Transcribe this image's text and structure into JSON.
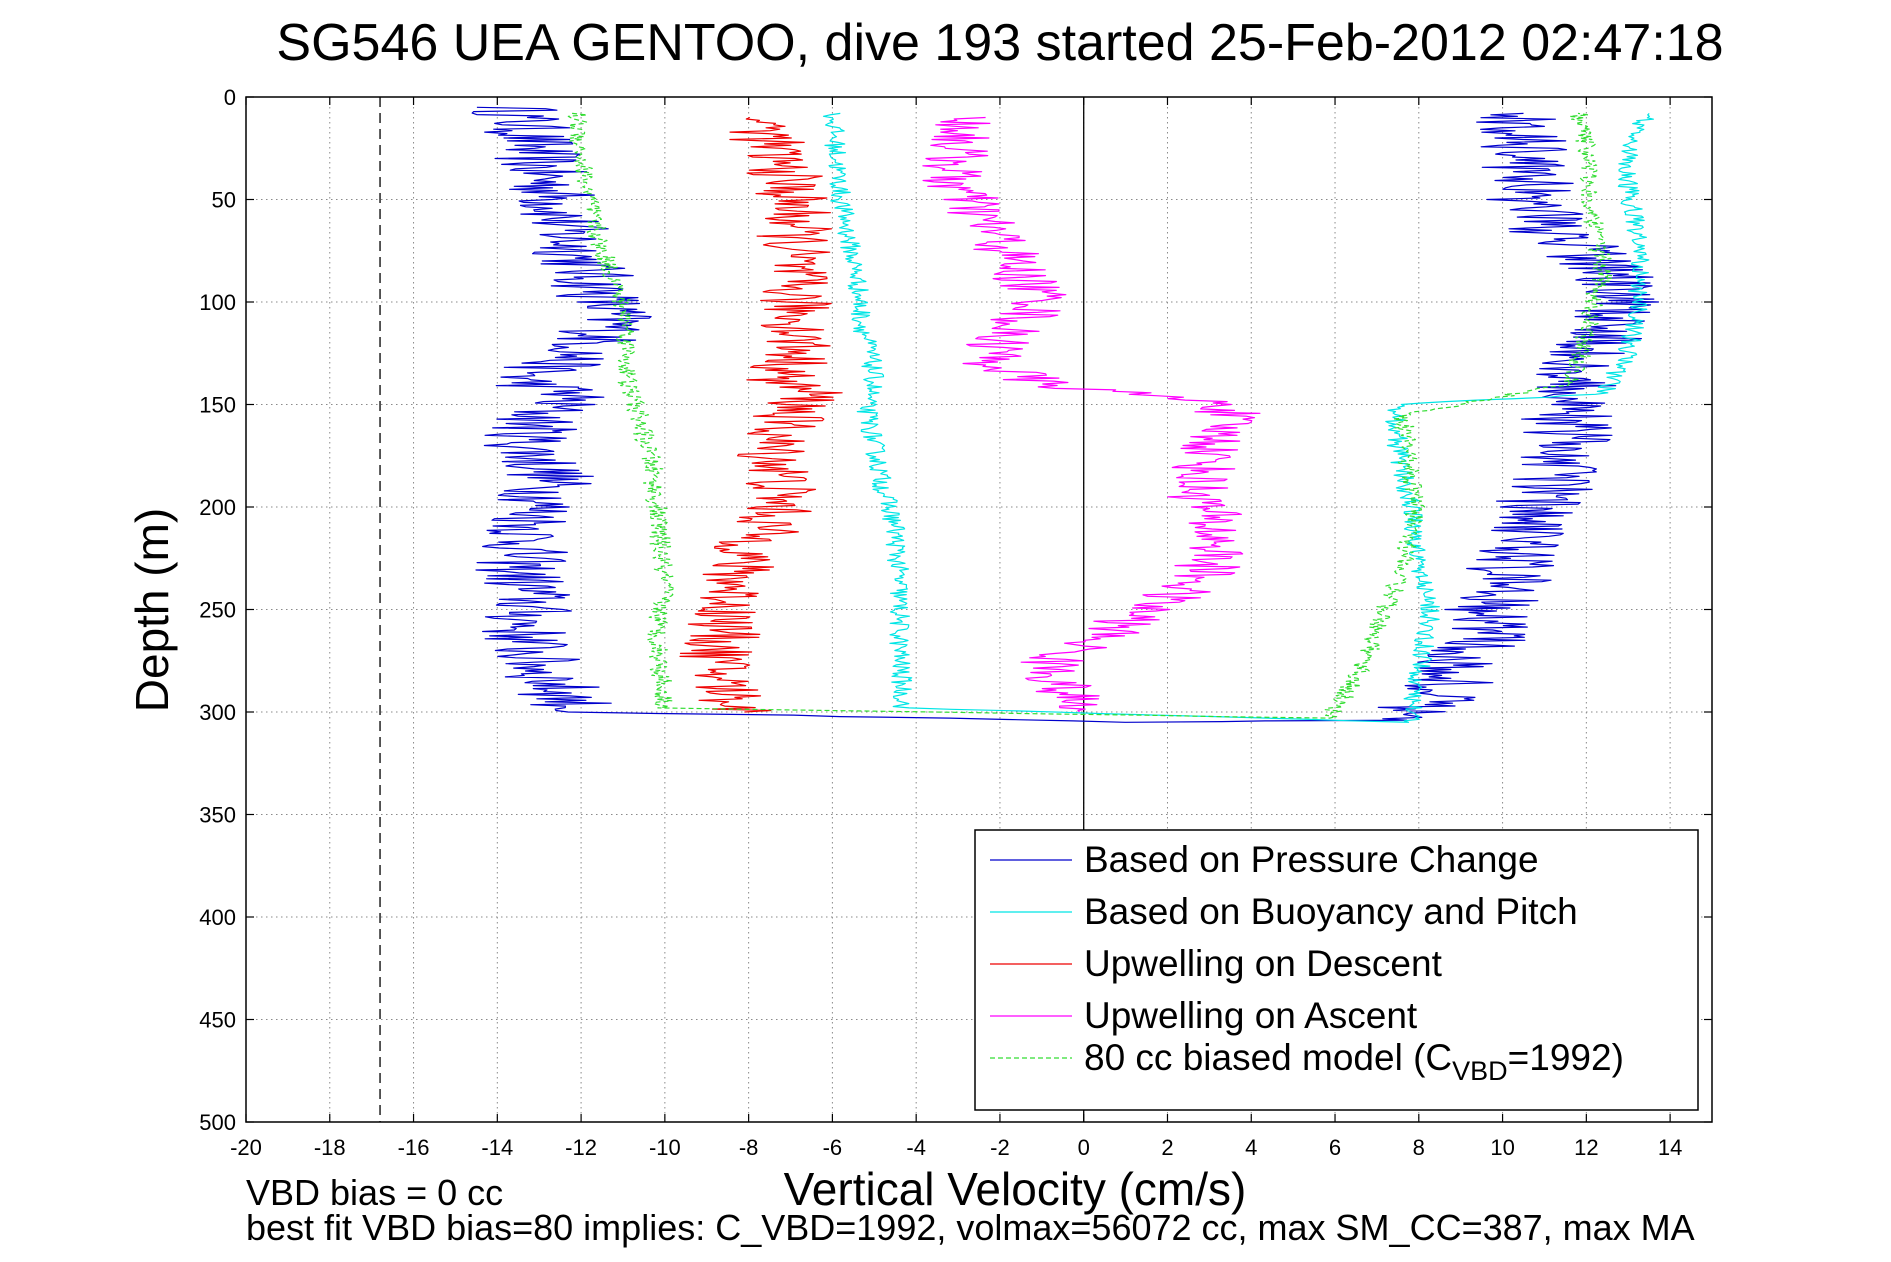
{
  "chart_data": {
    "type": "line",
    "title": "SG546 UEA GENTOO, dive 193 started 25-Feb-2012 02:47:18",
    "xlabel": "Vertical Velocity (cm/s)",
    "ylabel": "Depth (m)",
    "xlim": [
      -20,
      15
    ],
    "ylim": [
      0,
      500
    ],
    "y_reversed": true,
    "grid": true,
    "legend_location": "bottom-right",
    "x_ticks": [
      -20,
      -18,
      -16,
      -14,
      -12,
      -10,
      -8,
      -6,
      -4,
      -2,
      0,
      2,
      4,
      6,
      8,
      10,
      12,
      14
    ],
    "y_ticks": [
      0,
      50,
      100,
      150,
      200,
      250,
      300,
      350,
      400,
      450,
      500
    ],
    "reference_lines": [
      {
        "x": -16.8,
        "style": "dashed",
        "color": "#000000"
      },
      {
        "x": 0,
        "style": "solid",
        "color": "#000000"
      }
    ],
    "series": [
      {
        "name": "Based on Pressure Change",
        "color": "#0000cc",
        "style": "solid",
        "noise": 1.1,
        "points": [
          [
            -13.6,
            5
          ],
          [
            -13.2,
            20
          ],
          [
            -13.0,
            35
          ],
          [
            -12.6,
            50
          ],
          [
            -12.4,
            65
          ],
          [
            -12.0,
            80
          ],
          [
            -11.6,
            95
          ],
          [
            -11.2,
            110
          ],
          [
            -12.0,
            125
          ],
          [
            -13.5,
            138
          ],
          [
            -12.2,
            145
          ],
          [
            -13.0,
            155
          ],
          [
            -13.3,
            170
          ],
          [
            -12.7,
            185
          ],
          [
            -13.0,
            200
          ],
          [
            -13.3,
            215
          ],
          [
            -13.5,
            230
          ],
          [
            -13.2,
            245
          ],
          [
            -13.4,
            260
          ],
          [
            -13.1,
            275
          ],
          [
            -12.5,
            290
          ],
          [
            -12.0,
            300
          ],
          [
            -4.0,
            303
          ],
          [
            1.0,
            305
          ],
          [
            6.8,
            304
          ],
          [
            8.5,
            295
          ],
          [
            8.9,
            280
          ],
          [
            9.5,
            265
          ],
          [
            9.6,
            250
          ],
          [
            10.1,
            240
          ],
          [
            10.3,
            225
          ],
          [
            10.5,
            210
          ],
          [
            11.0,
            195
          ],
          [
            11.3,
            180
          ],
          [
            11.6,
            165
          ],
          [
            11.5,
            150
          ],
          [
            11.9,
            138
          ],
          [
            11.9,
            125
          ],
          [
            12.7,
            110
          ],
          [
            13.0,
            95
          ],
          [
            12.3,
            80
          ],
          [
            11.2,
            65
          ],
          [
            10.7,
            50
          ],
          [
            10.6,
            35
          ],
          [
            10.4,
            20
          ],
          [
            10.5,
            8
          ]
        ]
      },
      {
        "name": "Based on Buoyancy and Pitch",
        "color": "#00e5e5",
        "style": "solid",
        "noise": 0.25,
        "points": [
          [
            -6.0,
            8
          ],
          [
            -5.9,
            30
          ],
          [
            -5.8,
            50
          ],
          [
            -5.6,
            70
          ],
          [
            -5.4,
            90
          ],
          [
            -5.3,
            110
          ],
          [
            -5.1,
            125
          ],
          [
            -5.0,
            140
          ],
          [
            -5.2,
            150
          ],
          [
            -5.0,
            170
          ],
          [
            -4.8,
            190
          ],
          [
            -4.5,
            210
          ],
          [
            -4.4,
            240
          ],
          [
            -4.4,
            270
          ],
          [
            -4.3,
            298
          ],
          [
            7.8,
            305
          ],
          [
            7.9,
            290
          ],
          [
            8.1,
            270
          ],
          [
            8.3,
            250
          ],
          [
            8.0,
            230
          ],
          [
            7.9,
            210
          ],
          [
            7.7,
            190
          ],
          [
            7.5,
            170
          ],
          [
            7.4,
            150
          ],
          [
            12.4,
            145
          ],
          [
            13.0,
            125
          ],
          [
            13.2,
            105
          ],
          [
            13.3,
            85
          ],
          [
            13.2,
            65
          ],
          [
            13.0,
            45
          ],
          [
            13.0,
            25
          ],
          [
            13.5,
            8
          ]
        ]
      },
      {
        "name": "Upwelling on Descent",
        "color": "#ee0000",
        "style": "solid",
        "noise": 0.9,
        "points": [
          [
            -7.7,
            10
          ],
          [
            -7.5,
            25
          ],
          [
            -7.1,
            40
          ],
          [
            -6.9,
            55
          ],
          [
            -6.9,
            70
          ],
          [
            -7.0,
            85
          ],
          [
            -6.9,
            100
          ],
          [
            -6.8,
            115
          ],
          [
            -6.8,
            125
          ],
          [
            -7.3,
            138
          ],
          [
            -6.5,
            145
          ],
          [
            -7.0,
            155
          ],
          [
            -7.5,
            170
          ],
          [
            -7.2,
            185
          ],
          [
            -7.3,
            200
          ],
          [
            -7.8,
            215
          ],
          [
            -8.3,
            230
          ],
          [
            -8.4,
            245
          ],
          [
            -8.6,
            260
          ],
          [
            -8.8,
            275
          ],
          [
            -8.5,
            290
          ],
          [
            -8.1,
            300
          ]
        ]
      },
      {
        "name": "Upwelling on Ascent",
        "color": "#ff00ff",
        "style": "solid",
        "noise": 0.8,
        "points": [
          [
            -2.8,
            10
          ],
          [
            -3.0,
            25
          ],
          [
            -3.2,
            40
          ],
          [
            -2.6,
            55
          ],
          [
            -2.0,
            70
          ],
          [
            -1.6,
            85
          ],
          [
            -0.9,
            100
          ],
          [
            -1.9,
            115
          ],
          [
            -2.2,
            130
          ],
          [
            -1.0,
            140
          ],
          [
            3.5,
            150
          ],
          [
            3.3,
            160
          ],
          [
            3.0,
            175
          ],
          [
            2.7,
            190
          ],
          [
            3.0,
            205
          ],
          [
            3.2,
            220
          ],
          [
            2.8,
            235
          ],
          [
            1.5,
            250
          ],
          [
            0.3,
            265
          ],
          [
            -0.8,
            275
          ],
          [
            -0.5,
            290
          ],
          [
            -0.1,
            300
          ]
        ]
      },
      {
        "name": "80 cc biased model (C_VBD=1992)",
        "color": "#33dd33",
        "style": "dashed",
        "noise": 0.25,
        "points": [
          [
            -12.1,
            8
          ],
          [
            -12.0,
            30
          ],
          [
            -11.8,
            50
          ],
          [
            -11.6,
            70
          ],
          [
            -11.2,
            90
          ],
          [
            -10.9,
            110
          ],
          [
            -10.9,
            125
          ],
          [
            -10.9,
            140
          ],
          [
            -10.7,
            150
          ],
          [
            -10.5,
            165
          ],
          [
            -10.3,
            180
          ],
          [
            -10.2,
            200
          ],
          [
            -10.1,
            220
          ],
          [
            -10.0,
            240
          ],
          [
            -10.2,
            260
          ],
          [
            -10.1,
            280
          ],
          [
            -10.0,
            298
          ],
          [
            5.8,
            303
          ],
          [
            6.3,
            290
          ],
          [
            6.7,
            275
          ],
          [
            7.0,
            260
          ],
          [
            7.3,
            245
          ],
          [
            7.6,
            230
          ],
          [
            7.8,
            215
          ],
          [
            7.9,
            200
          ],
          [
            7.8,
            185
          ],
          [
            7.7,
            170
          ],
          [
            7.6,
            155
          ],
          [
            11.6,
            140
          ],
          [
            11.9,
            125
          ],
          [
            12.1,
            105
          ],
          [
            12.4,
            85
          ],
          [
            12.2,
            65
          ],
          [
            12.1,
            45
          ],
          [
            12.0,
            25
          ],
          [
            11.8,
            8
          ]
        ]
      }
    ],
    "annotations": [
      "VBD bias = 0 cc",
      "best fit VBD bias=80 implies: C_VBD=1992, volmax=56072 cc, max SM_CC=387, max MA"
    ]
  },
  "legend": {
    "items": [
      {
        "label": "Based on Pressure Change",
        "color": "#0000cc",
        "dashed": false
      },
      {
        "label": "Based on Buoyancy and Pitch",
        "color": "#00e5e5",
        "dashed": false
      },
      {
        "label": "Upwelling on Descent",
        "color": "#ee0000",
        "dashed": false
      },
      {
        "label": "Upwelling on Ascent",
        "color": "#ff00ff",
        "dashed": false
      },
      {
        "label": "80 cc biased model (C",
        "sub": "VBD",
        "suffix": "=1992)",
        "color": "#33dd33",
        "dashed": true
      }
    ]
  }
}
